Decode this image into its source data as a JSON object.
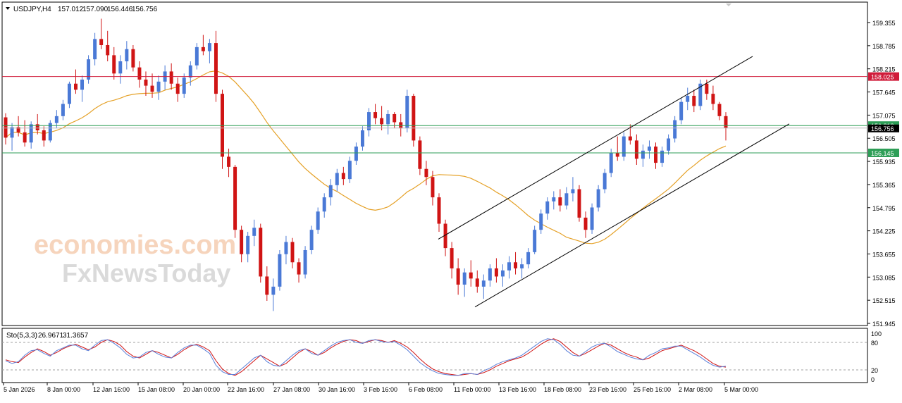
{
  "chart_data": [
    {
      "type": "candlestick",
      "header": {
        "symbol_timeframe": "USDJPY,H4",
        "ohlc": [
          "157.012",
          "157.090",
          "156.446",
          "156.756"
        ]
      },
      "ylim": [
        151.945,
        159.925
      ],
      "y_ticks": [
        "159.355",
        "158.785",
        "158.215",
        "157.645",
        "157.075",
        "156.505",
        "155.935",
        "155.365",
        "154.795",
        "154.225",
        "153.655",
        "153.085",
        "152.515",
        "151.945"
      ],
      "x_ticks": [
        "5 Jan 2026",
        "8 Jan 00:00",
        "12 Jan 16:00",
        "15 Jan 08:00",
        "20 Jan 00:00",
        "22 Jan 16:00",
        "27 Jan 08:00",
        "30 Jan 16:00",
        "3 Feb 16:00",
        "6 Feb 08:00",
        "11 Feb 00:00",
        "13 Feb 16:00",
        "18 Feb 08:00",
        "23 Feb 16:00",
        "25 Feb 16:00",
        "2 Mar 08:00",
        "5 Mar 00:00"
      ],
      "horizontal_levels": [
        {
          "value": 158.025,
          "label": "158.025",
          "color": "#d01c3a"
        },
        {
          "value": 156.818,
          "label": "156.818",
          "color": "#2e9e57"
        },
        {
          "value": 156.145,
          "label": "156.145",
          "color": "#2e9e57"
        }
      ],
      "current_price": {
        "value": 156.756,
        "label": "156.756"
      },
      "moving_average": {
        "color": "#e5a127"
      },
      "trend_channel": {
        "upper": [
          [
            154.02,
            158.52
          ]
        ],
        "lower": [
          [
            152.35,
            156.86
          ]
        ]
      },
      "candle_colors": {
        "up": "#4a79d6",
        "down": "#d01414"
      },
      "candles_approx": [
        [
          157.02,
          157.12,
          156.35,
          156.52
        ],
        [
          156.52,
          156.88,
          156.2,
          156.78
        ],
        [
          156.78,
          157.05,
          156.55,
          156.65
        ],
        [
          156.65,
          156.95,
          156.3,
          156.4
        ],
        [
          156.4,
          156.92,
          156.25,
          156.85
        ],
        [
          156.85,
          157.1,
          156.6,
          156.7
        ],
        [
          156.7,
          156.8,
          156.3,
          156.45
        ],
        [
          156.45,
          156.95,
          156.4,
          156.88
        ],
        [
          156.88,
          157.2,
          156.75,
          157.05
        ],
        [
          157.05,
          157.45,
          156.95,
          157.35
        ],
        [
          157.35,
          157.9,
          157.25,
          157.85
        ],
        [
          157.85,
          158.2,
          157.6,
          157.7
        ],
        [
          157.7,
          158.05,
          157.4,
          157.95
        ],
        [
          157.95,
          158.55,
          157.85,
          158.45
        ],
        [
          158.45,
          159.1,
          158.3,
          158.95
        ],
        [
          158.95,
          159.45,
          158.7,
          158.8
        ],
        [
          158.8,
          159.15,
          158.4,
          158.55
        ],
        [
          158.55,
          158.75,
          157.95,
          158.1
        ],
        [
          158.1,
          158.55,
          157.85,
          158.4
        ],
        [
          158.4,
          158.9,
          158.2,
          158.7
        ],
        [
          158.7,
          158.8,
          158.15,
          158.25
        ],
        [
          158.25,
          158.4,
          157.75,
          157.95
        ],
        [
          157.95,
          158.15,
          157.55,
          157.8
        ],
        [
          157.8,
          158.1,
          157.5,
          157.65
        ],
        [
          157.65,
          158.05,
          157.45,
          157.9
        ],
        [
          157.9,
          158.3,
          157.7,
          158.15
        ],
        [
          158.15,
          158.35,
          157.7,
          157.85
        ],
        [
          157.85,
          158.0,
          157.4,
          157.6
        ],
        [
          157.6,
          158.1,
          157.5,
          158.0
        ],
        [
          158.0,
          158.4,
          157.8,
          158.3
        ],
        [
          158.3,
          158.85,
          158.2,
          158.75
        ],
        [
          158.75,
          159.05,
          158.55,
          158.65
        ],
        [
          158.65,
          158.95,
          158.35,
          158.85
        ],
        [
          158.85,
          159.15,
          157.4,
          157.6
        ],
        [
          157.6,
          157.7,
          155.75,
          156.05
        ],
        [
          156.05,
          156.25,
          155.55,
          155.8
        ],
        [
          155.8,
          155.85,
          154.05,
          154.25
        ],
        [
          154.25,
          154.35,
          153.45,
          153.65
        ],
        [
          153.65,
          154.2,
          153.45,
          154.1
        ],
        [
          154.1,
          154.5,
          153.85,
          154.3
        ],
        [
          154.3,
          154.4,
          152.95,
          153.1
        ],
        [
          153.1,
          153.35,
          152.5,
          152.65
        ],
        [
          152.65,
          153.05,
          152.25,
          152.85
        ],
        [
          152.85,
          153.75,
          152.75,
          153.65
        ],
        [
          153.65,
          154.1,
          153.4,
          153.95
        ],
        [
          153.95,
          154.05,
          153.3,
          153.45
        ],
        [
          153.45,
          153.55,
          152.95,
          153.15
        ],
        [
          153.15,
          153.85,
          153.05,
          153.75
        ],
        [
          153.75,
          154.35,
          153.65,
          154.25
        ],
        [
          154.25,
          154.8,
          154.15,
          154.7
        ],
        [
          154.7,
          155.15,
          154.55,
          155.05
        ],
        [
          155.05,
          155.5,
          154.85,
          155.35
        ],
        [
          155.35,
          155.75,
          155.2,
          155.65
        ],
        [
          155.65,
          155.8,
          155.35,
          155.5
        ],
        [
          155.5,
          156.05,
          155.4,
          155.95
        ],
        [
          155.95,
          156.4,
          155.85,
          156.3
        ],
        [
          156.3,
          156.8,
          156.2,
          156.7
        ],
        [
          156.7,
          157.25,
          156.55,
          157.15
        ],
        [
          157.15,
          157.35,
          156.85,
          157.0
        ],
        [
          157.0,
          157.3,
          156.7,
          156.85
        ],
        [
          156.85,
          157.2,
          156.6,
          157.1
        ],
        [
          157.1,
          157.15,
          156.75,
          156.9
        ],
        [
          156.9,
          157.1,
          156.55,
          156.75
        ],
        [
          156.75,
          157.7,
          156.65,
          157.55
        ],
        [
          157.55,
          157.6,
          156.3,
          156.45
        ],
        [
          156.45,
          156.55,
          155.6,
          155.75
        ],
        [
          155.75,
          155.95,
          155.35,
          155.55
        ],
        [
          155.55,
          155.7,
          154.85,
          155.05
        ],
        [
          155.05,
          155.15,
          154.2,
          154.4
        ],
        [
          154.4,
          154.5,
          153.6,
          153.8
        ],
        [
          153.8,
          153.95,
          153.05,
          153.3
        ],
        [
          153.3,
          153.55,
          152.65,
          152.9
        ],
        [
          152.9,
          153.3,
          152.6,
          153.2
        ],
        [
          153.2,
          153.5,
          152.85,
          153.05
        ],
        [
          153.05,
          153.25,
          152.7,
          152.85
        ],
        [
          152.85,
          153.15,
          152.55,
          153.0
        ],
        [
          153.0,
          153.4,
          152.85,
          153.3
        ],
        [
          153.3,
          153.55,
          152.95,
          153.1
        ],
        [
          153.1,
          153.4,
          152.85,
          153.25
        ],
        [
          153.25,
          153.6,
          153.05,
          153.45
        ],
        [
          153.45,
          153.7,
          153.15,
          153.3
        ],
        [
          153.3,
          153.55,
          153.05,
          153.4
        ],
        [
          153.4,
          153.8,
          153.3,
          153.7
        ],
        [
          153.7,
          154.35,
          153.65,
          154.25
        ],
        [
          154.25,
          154.75,
          154.15,
          154.65
        ],
        [
          154.65,
          155.05,
          154.5,
          154.95
        ],
        [
          154.95,
          155.2,
          154.75,
          155.05
        ],
        [
          155.05,
          155.25,
          154.7,
          154.85
        ],
        [
          154.85,
          155.3,
          154.75,
          155.15
        ],
        [
          155.15,
          155.55,
          154.95,
          155.25
        ],
        [
          155.25,
          155.35,
          154.45,
          154.55
        ],
        [
          154.55,
          154.7,
          154.05,
          154.25
        ],
        [
          154.25,
          154.9,
          154.15,
          154.8
        ],
        [
          154.8,
          155.35,
          154.7,
          155.25
        ],
        [
          155.25,
          155.75,
          155.15,
          155.65
        ],
        [
          155.65,
          156.25,
          155.55,
          156.15
        ],
        [
          156.15,
          156.55,
          155.95,
          156.05
        ],
        [
          156.05,
          156.65,
          155.95,
          156.55
        ],
        [
          156.55,
          156.85,
          156.35,
          156.45
        ],
        [
          156.45,
          156.6,
          155.85,
          156.0
        ],
        [
          156.0,
          156.35,
          155.8,
          156.2
        ],
        [
          156.2,
          156.45,
          156.0,
          156.3
        ],
        [
          156.3,
          156.4,
          155.75,
          155.9
        ],
        [
          155.9,
          156.3,
          155.8,
          156.2
        ],
        [
          156.2,
          156.6,
          156.1,
          156.5
        ],
        [
          156.5,
          157.05,
          156.4,
          156.95
        ],
        [
          156.95,
          157.5,
          156.85,
          157.4
        ],
        [
          157.4,
          157.75,
          157.2,
          157.55
        ],
        [
          157.55,
          157.7,
          157.15,
          157.3
        ],
        [
          157.3,
          157.95,
          157.2,
          157.85
        ],
        [
          157.85,
          157.95,
          157.45,
          157.6
        ],
        [
          157.6,
          157.8,
          157.2,
          157.35
        ],
        [
          157.35,
          157.4,
          156.95,
          157.05
        ],
        [
          157.05,
          157.15,
          156.45,
          156.76
        ]
      ]
    },
    {
      "type": "line",
      "indicator": "Sto(5,3,3)",
      "values_label": [
        "26.9671",
        "31.3657"
      ],
      "ylim": [
        0,
        100
      ],
      "y_ticks": [
        "100",
        "80",
        "20",
        "0"
      ],
      "levels": [
        80,
        20
      ],
      "series": [
        {
          "color": "#d01414",
          "values": [
            42,
            38,
            36,
            48,
            58,
            66,
            60,
            52,
            58,
            66,
            72,
            76,
            70,
            64,
            70,
            80,
            86,
            82,
            74,
            60,
            50,
            46,
            54,
            62,
            58,
            52,
            46,
            54,
            64,
            72,
            76,
            70,
            62,
            40,
            22,
            12,
            8,
            16,
            28,
            40,
            52,
            44,
            36,
            28,
            34,
            46,
            58,
            66,
            60,
            52,
            58,
            68,
            76,
            82,
            86,
            84,
            78,
            82,
            86,
            84,
            80,
            84,
            78,
            70,
            58,
            44,
            32,
            22,
            16,
            12,
            10,
            8,
            10,
            12,
            10,
            14,
            20,
            28,
            34,
            40,
            44,
            48,
            56,
            66,
            76,
            84,
            88,
            82,
            70,
            58,
            50,
            56,
            64,
            72,
            78,
            74,
            66,
            58,
            52,
            48,
            42,
            46,
            54,
            62,
            66,
            70,
            74,
            68,
            62,
            54,
            44,
            34,
            28,
            26
          ]
        },
        {
          "color": "#5b7fd9",
          "values": [
            40,
            34,
            38,
            52,
            62,
            64,
            56,
            50,
            62,
            68,
            74,
            74,
            66,
            62,
            74,
            84,
            86,
            78,
            68,
            54,
            46,
            48,
            58,
            62,
            54,
            48,
            46,
            58,
            68,
            74,
            74,
            66,
            56,
            30,
            16,
            10,
            10,
            22,
            34,
            46,
            52,
            38,
            30,
            28,
            40,
            52,
            62,
            66,
            56,
            52,
            62,
            72,
            80,
            84,
            86,
            80,
            78,
            84,
            86,
            82,
            80,
            82,
            74,
            64,
            50,
            36,
            26,
            18,
            12,
            10,
            8,
            8,
            12,
            12,
            10,
            18,
            24,
            32,
            38,
            42,
            46,
            52,
            62,
            72,
            82,
            88,
            86,
            76,
            62,
            52,
            50,
            60,
            70,
            76,
            78,
            70,
            60,
            54,
            48,
            44,
            42,
            52,
            58,
            66,
            68,
            72,
            72,
            64,
            56,
            48,
            38,
            30,
            26,
            28
          ]
        }
      ]
    }
  ],
  "watermark": {
    "line1": "economies.com",
    "line2": "FxNewsToday"
  },
  "colors": {
    "background": "#ffffff",
    "grid": "#c8c8c8",
    "axis": "#000000"
  }
}
